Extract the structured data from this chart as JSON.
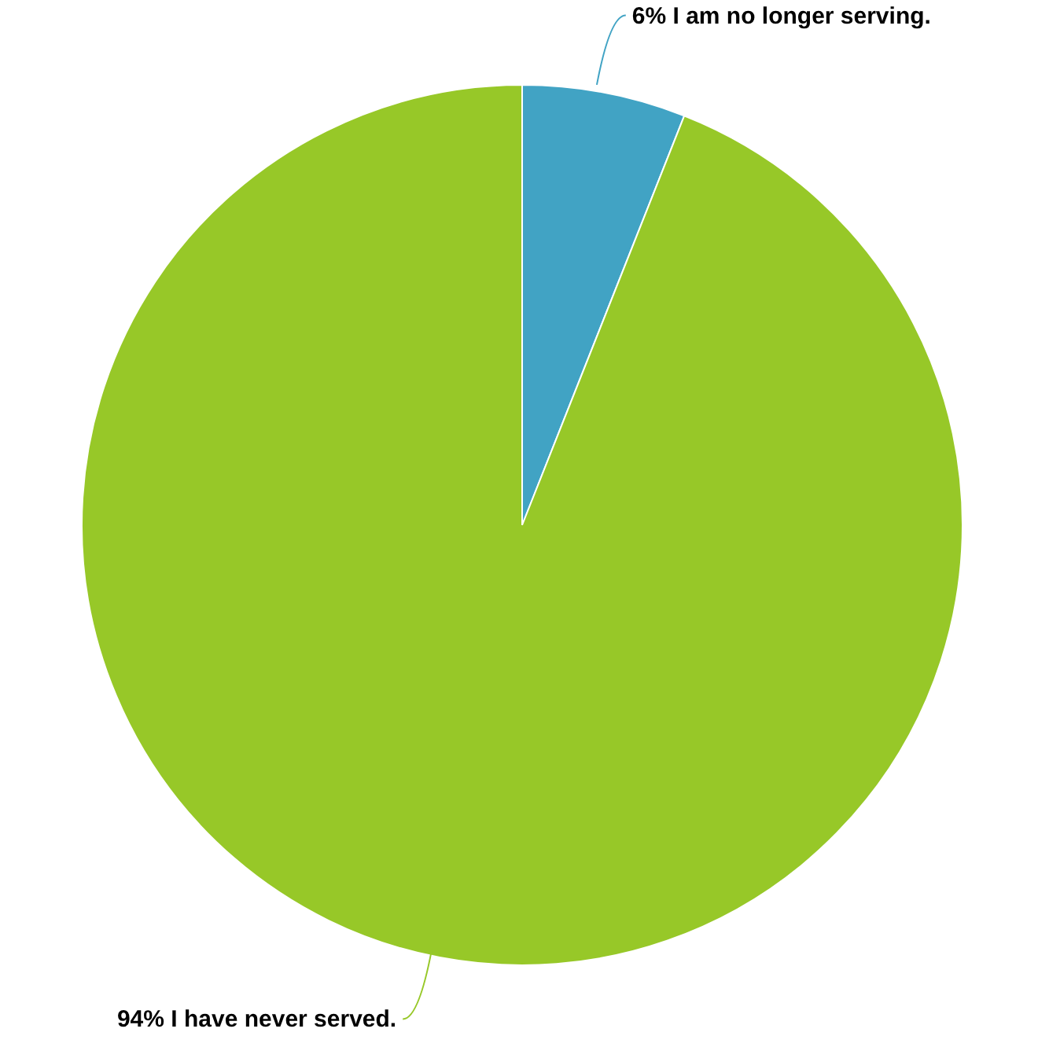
{
  "chart_data": {
    "type": "pie",
    "categories": [
      "I am no longer serving.",
      "I have never served."
    ],
    "values": [
      6,
      94
    ],
    "value_labels": [
      "6%",
      "94%"
    ],
    "colors": [
      "#41a3c4",
      "#97c828"
    ],
    "legend": false
  }
}
